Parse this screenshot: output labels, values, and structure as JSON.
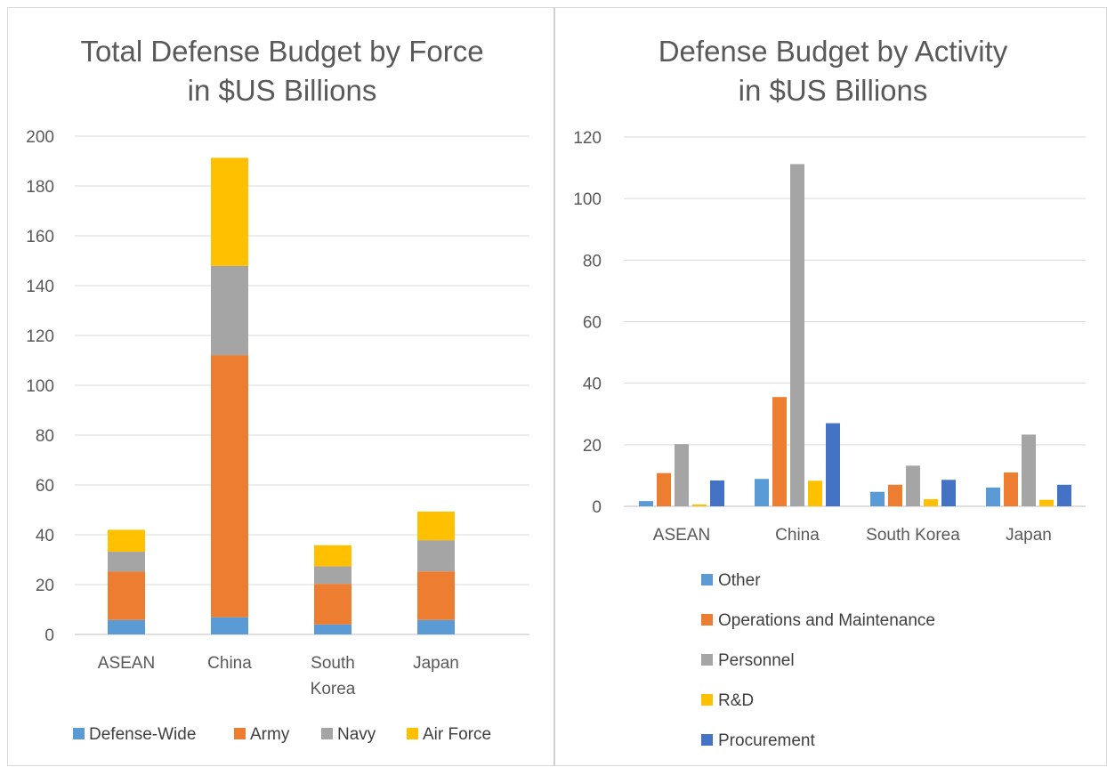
{
  "chart_data": [
    {
      "type": "bar",
      "stacked": true,
      "title_lines": [
        "Total Defense Budget by Force",
        "in $US Billions"
      ],
      "categories": [
        [
          "ASEAN"
        ],
        [
          "China"
        ],
        [
          "South",
          "Korea"
        ],
        [
          "Japan"
        ]
      ],
      "ylim": [
        0,
        200
      ],
      "yticks": [
        0,
        20,
        40,
        60,
        80,
        100,
        120,
        140,
        160,
        180,
        200
      ],
      "grid": true,
      "legend_position": "bottom",
      "series": [
        {
          "name": "Defense-Wide",
          "color": "#5B9BD5",
          "values": [
            5.8,
            6.9,
            4.0,
            5.8
          ]
        },
        {
          "name": "Army",
          "color": "#ED7D31",
          "values": [
            19.4,
            105.2,
            16.3,
            19.5
          ]
        },
        {
          "name": "Navy",
          "color": "#A5A5A5",
          "values": [
            8.0,
            35.8,
            7.0,
            12.5
          ]
        },
        {
          "name": "Air Force",
          "color": "#FFC000",
          "values": [
            8.8,
            43.4,
            8.5,
            11.5
          ]
        }
      ]
    },
    {
      "type": "bar",
      "stacked": false,
      "title_lines": [
        "Defense Budget by Activity",
        "in $US Billions"
      ],
      "categories": [
        [
          "ASEAN"
        ],
        [
          "China"
        ],
        [
          "South Korea"
        ],
        [
          "Japan"
        ]
      ],
      "ylim": [
        0,
        120
      ],
      "yticks": [
        0,
        20,
        40,
        60,
        80,
        100,
        120
      ],
      "grid": true,
      "legend_position": "bottom",
      "series": [
        {
          "name": "Other",
          "color": "#5B9BD5",
          "values": [
            1.7,
            8.9,
            4.7,
            6.1
          ]
        },
        {
          "name": "Operations and Maintenance",
          "color": "#ED7D31",
          "values": [
            10.8,
            35.5,
            7.0,
            11.0
          ]
        },
        {
          "name": "Personnel",
          "color": "#A5A5A5",
          "values": [
            20.2,
            111.2,
            13.2,
            23.3
          ]
        },
        {
          "name": "R&D",
          "color": "#FFC000",
          "values": [
            0.6,
            8.3,
            2.3,
            2.1
          ]
        },
        {
          "name": "Procurement",
          "color": "#4472C4",
          "values": [
            8.4,
            27.0,
            8.6,
            7.0
          ]
        }
      ]
    }
  ]
}
